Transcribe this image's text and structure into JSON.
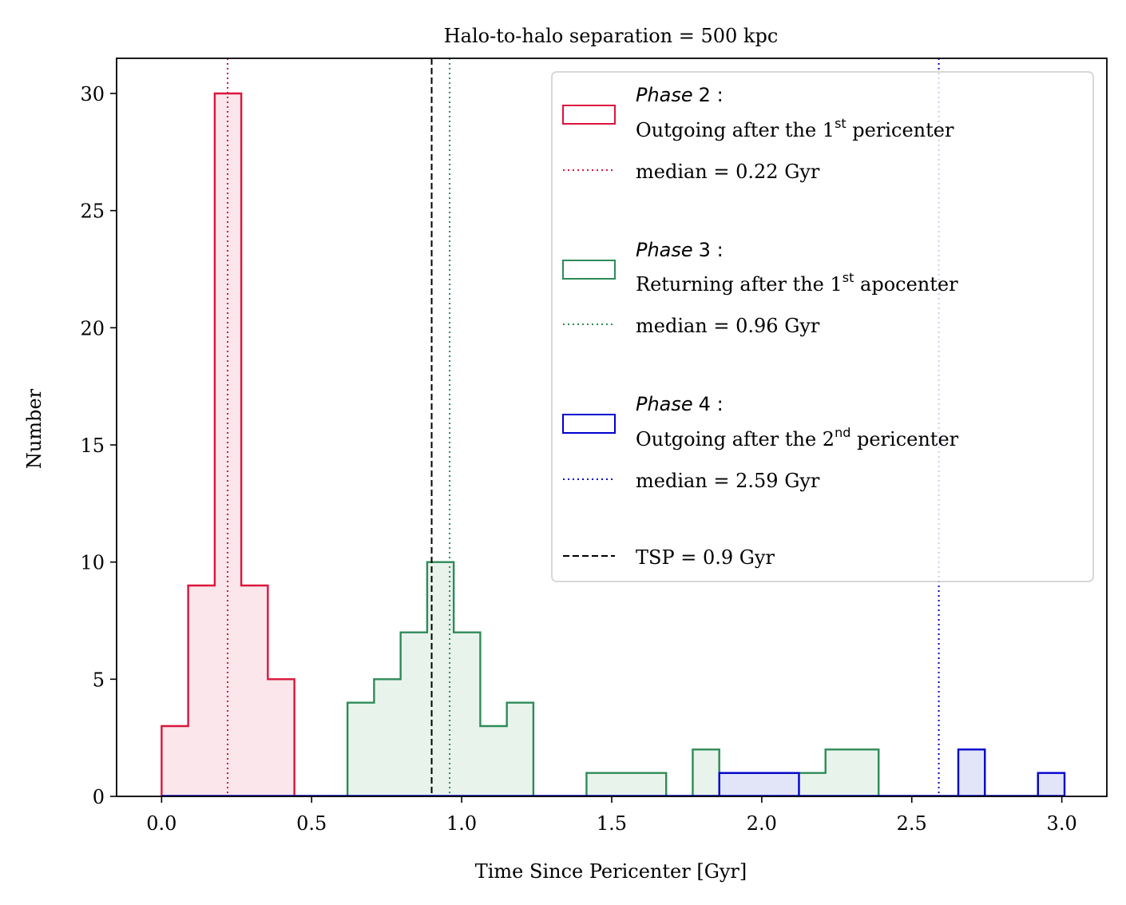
{
  "chart_data": {
    "type": "histogram",
    "title": "Halo-to-halo separation = 500 kpc",
    "xlabel": "Time Since Pericenter [Gyr]",
    "ylabel": "Number",
    "xlim": [
      -0.15,
      3.15
    ],
    "ylim": [
      0,
      31.5
    ],
    "xticks": [
      0.0,
      0.5,
      1.0,
      1.5,
      2.0,
      2.5,
      3.0
    ],
    "xtick_labels": [
      "0.0",
      "0.5",
      "1.0",
      "1.5",
      "2.0",
      "2.5",
      "3.0"
    ],
    "yticks": [
      0,
      5,
      10,
      15,
      20,
      25,
      30
    ],
    "ytick_labels": [
      "0",
      "5",
      "10",
      "15",
      "20",
      "25",
      "30"
    ],
    "bin_edges": [
      0.0,
      0.0885,
      0.177,
      0.2655,
      0.354,
      0.4425,
      0.531,
      0.6195,
      0.708,
      0.7965,
      0.885,
      0.9735,
      1.062,
      1.1505,
      1.239,
      1.3275,
      1.416,
      1.5045,
      1.593,
      1.6815,
      1.77,
      1.8585,
      1.947,
      2.0355,
      2.124,
      2.2125,
      2.301,
      2.3895,
      2.478,
      2.5665,
      2.655,
      2.7435,
      2.832,
      2.9205,
      3.009
    ],
    "series": [
      {
        "name": "Phase 2",
        "legend_italic": "Phase",
        "legend_num": "2 :",
        "legend_desc_pre": "Outgoing after the 1",
        "legend_sup": "st",
        "legend_desc_post": " pericenter",
        "color": "#dc143c",
        "fill": "#fae6eb",
        "counts": [
          3,
          9,
          30,
          9,
          5,
          0,
          0,
          0,
          0,
          0,
          0,
          0,
          0,
          0,
          0,
          0,
          0,
          0,
          0,
          0,
          0,
          0,
          0,
          0,
          0,
          0,
          0,
          0,
          0,
          0,
          0,
          0,
          0,
          0
        ],
        "median": 0.22,
        "median_label": "median = 0.22 Gyr"
      },
      {
        "name": "Phase 3",
        "legend_italic": "Phase",
        "legend_num": "3 :",
        "legend_desc_pre": "Returning after the 1",
        "legend_sup": "st",
        "legend_desc_post": " apocenter",
        "color": "#2e8b57",
        "fill": "#e8f3ec",
        "counts": [
          0,
          0,
          0,
          0,
          0,
          0,
          0,
          4,
          5,
          7,
          10,
          7,
          3,
          4,
          0,
          0,
          1,
          1,
          1,
          0,
          2,
          1,
          1,
          1,
          1,
          2,
          2,
          0,
          0,
          0,
          0,
          0,
          0,
          0
        ],
        "median": 0.96,
        "median_label": "median = 0.96 Gyr"
      },
      {
        "name": "Phase 4",
        "legend_italic": "Phase",
        "legend_num": "4 :",
        "legend_desc_pre": "Outgoing after the 2",
        "legend_sup": "nd",
        "legend_desc_post": " pericenter",
        "color": "#0000cd",
        "fill": "#e2e4f8",
        "counts": [
          0,
          0,
          0,
          0,
          0,
          0,
          0,
          0,
          0,
          0,
          0,
          0,
          0,
          0,
          0,
          0,
          0,
          0,
          0,
          0,
          0,
          1,
          1,
          1,
          0,
          0,
          0,
          0,
          0,
          0,
          2,
          0,
          0,
          1
        ],
        "median": 2.59,
        "median_label": "median = 2.59 Gyr"
      }
    ],
    "tsp": {
      "value": 0.9,
      "label": "TSP = 0.9 Gyr",
      "color": "#000000"
    },
    "legend_position": "upper-right"
  }
}
